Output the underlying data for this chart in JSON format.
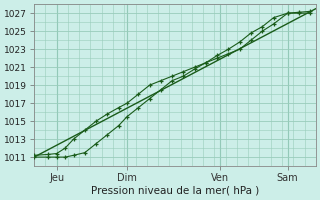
{
  "title": "Pression niveau de la mer( hPa )",
  "ylabel_ticks": [
    1011,
    1013,
    1015,
    1017,
    1019,
    1021,
    1023,
    1025,
    1027
  ],
  "ylim": [
    1010.0,
    1028.0
  ],
  "xlim": [
    0,
    100
  ],
  "xtick_positions": [
    8,
    33,
    66,
    90
  ],
  "xtick_labels": [
    "Jeu",
    "Dim",
    "Ven",
    "Sam"
  ],
  "background_color": "#cceee8",
  "grid_color": "#99ccbb",
  "line_color": "#1a5c1a",
  "line1_x": [
    0,
    5,
    8,
    11,
    14,
    18,
    22,
    26,
    30,
    33,
    37,
    41,
    45,
    49,
    53,
    57,
    61,
    65,
    69,
    73,
    77,
    81,
    85,
    90,
    94,
    98
  ],
  "line1_y": [
    1011.2,
    1011.3,
    1011.4,
    1012.0,
    1013.0,
    1014.0,
    1015.0,
    1015.8,
    1016.5,
    1017.0,
    1018.0,
    1019.0,
    1019.5,
    1020.0,
    1020.5,
    1021.0,
    1021.5,
    1022.0,
    1022.5,
    1023.0,
    1024.0,
    1025.0,
    1025.8,
    1027.0,
    1027.1,
    1027.2
  ],
  "line2_x": [
    0,
    5,
    8,
    11,
    14,
    18,
    22,
    26,
    30,
    33,
    37,
    41,
    45,
    49,
    53,
    57,
    61,
    65,
    69,
    73,
    77,
    81,
    85,
    90,
    94,
    98
  ],
  "line2_y": [
    1011.0,
    1011.0,
    1011.0,
    1011.0,
    1011.2,
    1011.5,
    1012.5,
    1013.5,
    1014.5,
    1015.5,
    1016.5,
    1017.5,
    1018.5,
    1019.5,
    1020.0,
    1020.8,
    1021.5,
    1022.3,
    1023.0,
    1023.8,
    1024.8,
    1025.5,
    1026.5,
    1027.0,
    1027.0,
    1027.0
  ],
  "line3_x": [
    0,
    100
  ],
  "line3_y": [
    1011.0,
    1027.5
  ]
}
